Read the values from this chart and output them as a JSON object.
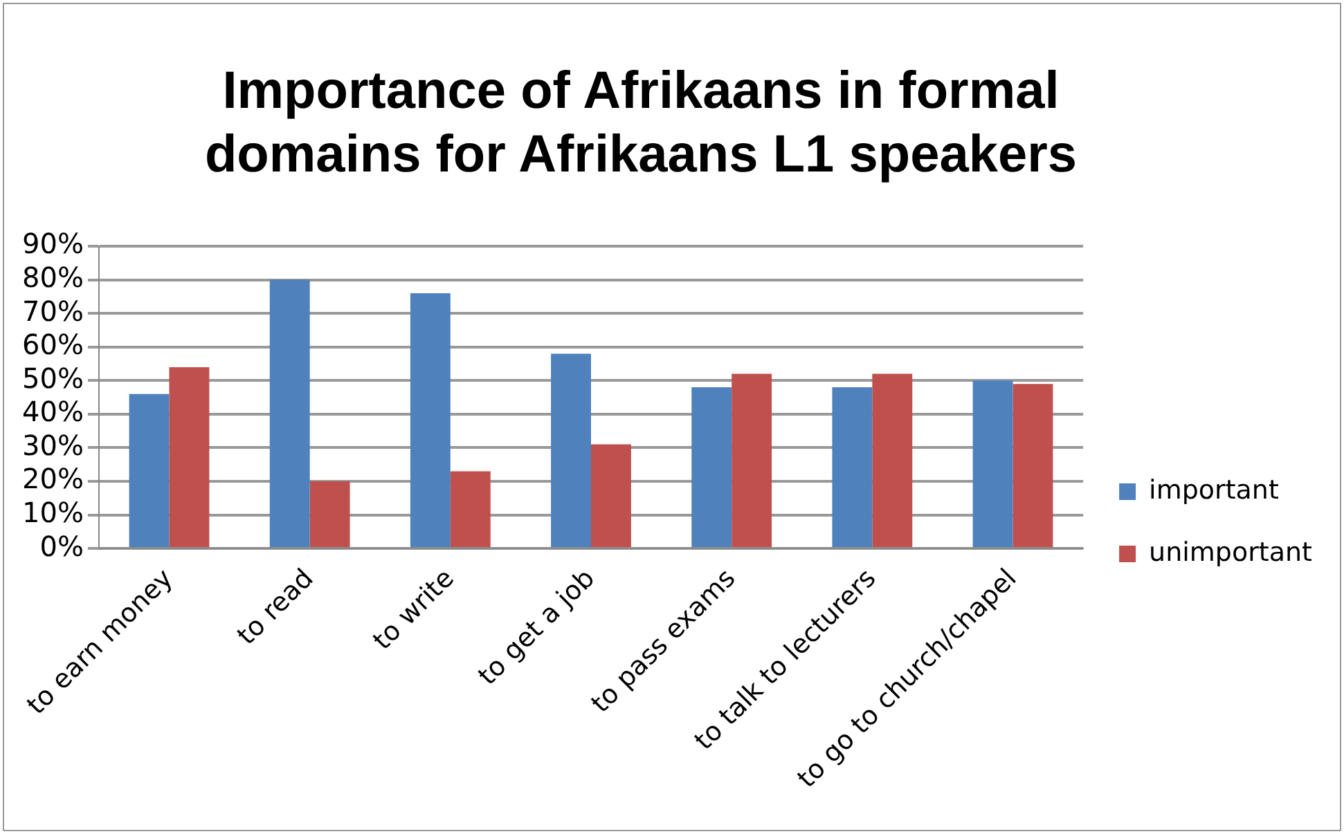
{
  "chart_data": {
    "type": "bar",
    "title": "Importance of Afrikaans in formal domains for Afrikaans L1 speakers",
    "categories": [
      "to earn money",
      "to read",
      "to write",
      "to get a job",
      "to pass exams",
      "to talk to lecturers",
      "to go to church/chapel"
    ],
    "series": [
      {
        "name": "important",
        "color": "#4f81bd",
        "values": [
          46,
          80,
          76,
          58,
          48,
          48,
          50
        ]
      },
      {
        "name": "unimportant",
        "color": "#c0504d",
        "values": [
          54,
          20,
          23,
          31,
          52,
          52,
          49
        ]
      }
    ],
    "ylim": [
      0,
      90
    ],
    "yticks": [
      {
        "value": 0,
        "label": "0%"
      },
      {
        "value": 10,
        "label": "10%"
      },
      {
        "value": 20,
        "label": "20%"
      },
      {
        "value": 30,
        "label": "30%"
      },
      {
        "value": 40,
        "label": "40%"
      },
      {
        "value": 50,
        "label": "50%"
      },
      {
        "value": 60,
        "label": "60%"
      },
      {
        "value": 70,
        "label": "70%"
      },
      {
        "value": 80,
        "label": "80%"
      },
      {
        "value": 90,
        "label": "90%"
      }
    ],
    "grid": "y",
    "legend": "right"
  }
}
